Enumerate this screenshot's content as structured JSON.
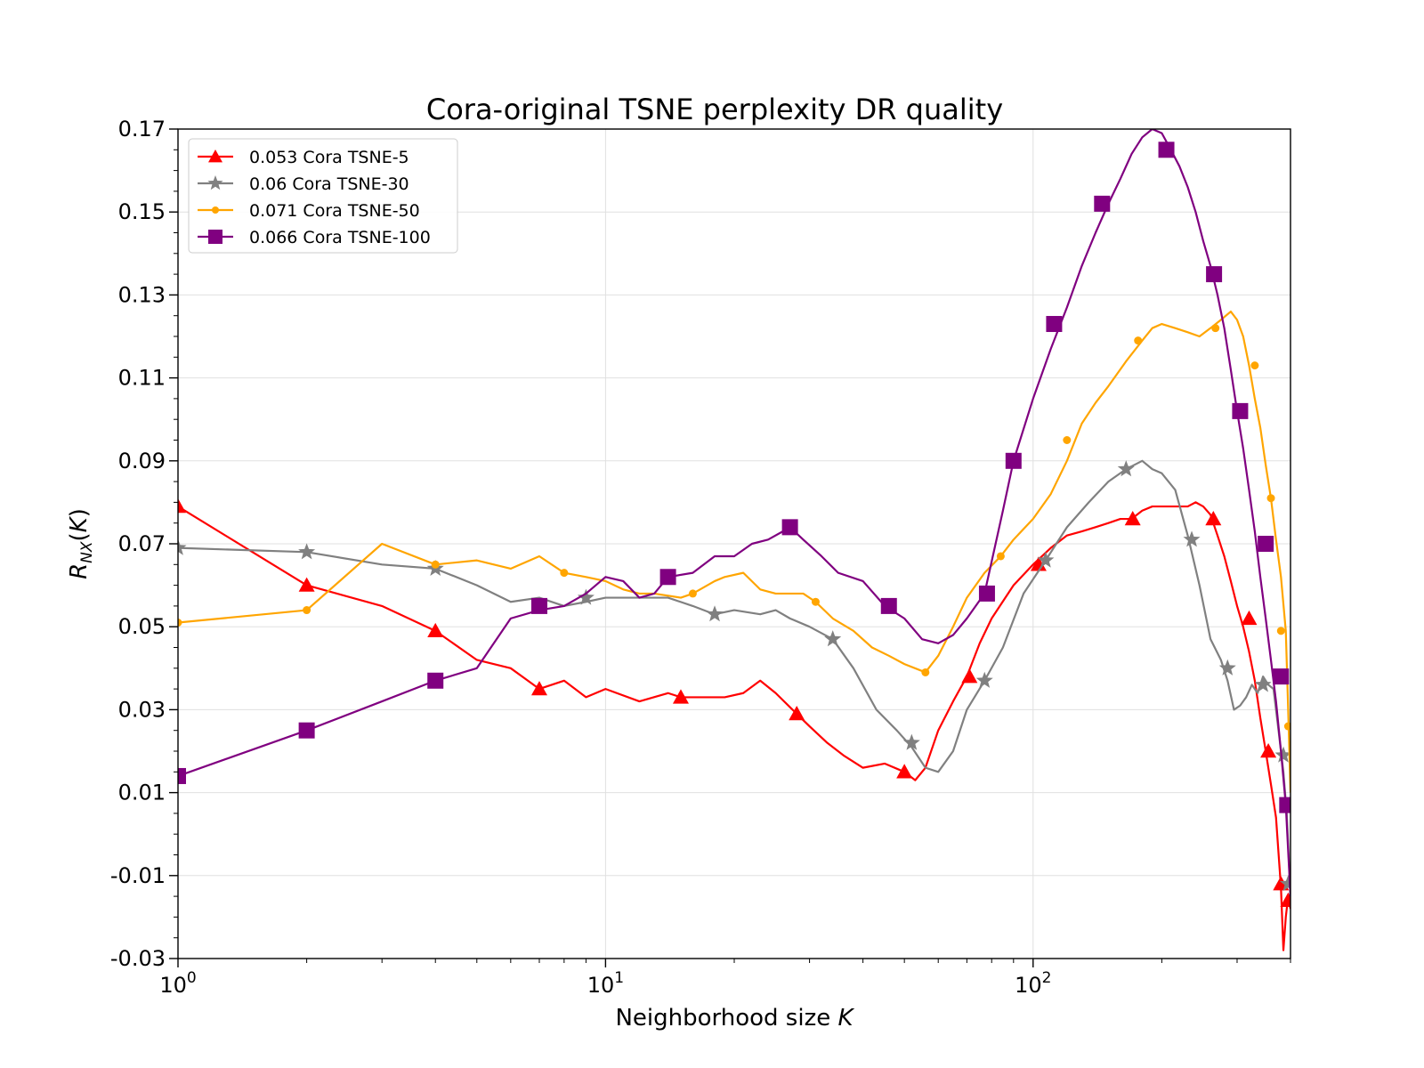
{
  "chart_data": {
    "type": "line",
    "title": "Cora-original TSNE perplexity DR quality",
    "xlabel": "Neighborhood size K",
    "ylabel": "R_NX(K)",
    "xscale": "log",
    "xlim": [
      1,
      400
    ],
    "ylim": [
      -0.03,
      0.17
    ],
    "x_ticks": [
      {
        "value": 1,
        "label_base": "10",
        "label_exp": "0"
      },
      {
        "value": 10,
        "label_base": "10",
        "label_exp": "1"
      },
      {
        "value": 100,
        "label_base": "10",
        "label_exp": "2"
      }
    ],
    "y_ticks": [
      {
        "value": 0.17,
        "label": "0.17"
      },
      {
        "value": 0.15,
        "label": "0.15"
      },
      {
        "value": 0.13,
        "label": "0.13"
      },
      {
        "value": 0.11,
        "label": "0.11"
      },
      {
        "value": 0.09,
        "label": "0.09"
      },
      {
        "value": 0.07,
        "label": "0.07"
      },
      {
        "value": 0.05,
        "label": "0.05"
      },
      {
        "value": 0.03,
        "label": "0.03"
      },
      {
        "value": 0.01,
        "label": "0.01"
      },
      {
        "value": -0.01,
        "label": "-0.01"
      },
      {
        "value": -0.03,
        "label": "-0.03"
      }
    ],
    "grid": true,
    "legend_position": "top-left",
    "series": [
      {
        "name": "0.053 Cora TSNE-5",
        "color": "#ff0000",
        "marker": "triangle",
        "x": [
          1,
          2,
          3,
          4,
          5,
          6,
          7,
          8,
          9,
          10,
          12,
          14,
          15,
          17,
          19,
          21,
          23,
          25,
          28,
          30,
          33,
          36,
          40,
          45,
          50,
          53,
          56,
          60,
          65,
          70,
          75,
          80,
          90,
          100,
          110,
          120,
          130,
          140,
          150,
          160,
          170,
          180,
          190,
          200,
          210,
          220,
          230,
          240,
          250,
          260,
          270,
          280,
          290,
          300,
          310,
          320,
          330,
          340,
          350,
          360,
          370,
          380,
          385,
          390,
          395,
          400
        ],
        "y": [
          0.079,
          0.06,
          0.055,
          0.049,
          0.042,
          0.04,
          0.035,
          0.037,
          0.033,
          0.035,
          0.032,
          0.034,
          0.033,
          0.033,
          0.033,
          0.034,
          0.037,
          0.034,
          0.029,
          0.026,
          0.022,
          0.019,
          0.016,
          0.017,
          0.015,
          0.013,
          0.016,
          0.025,
          0.032,
          0.038,
          0.046,
          0.052,
          0.06,
          0.065,
          0.069,
          0.072,
          0.073,
          0.074,
          0.075,
          0.076,
          0.076,
          0.078,
          0.079,
          0.079,
          0.079,
          0.079,
          0.079,
          0.08,
          0.079,
          0.077,
          0.072,
          0.067,
          0.061,
          0.055,
          0.05,
          0.044,
          0.037,
          0.028,
          0.02,
          0.012,
          0.004,
          -0.013,
          -0.028,
          -0.02,
          -0.015,
          -0.018
        ],
        "marker_x": [
          1,
          2,
          4,
          7,
          15,
          28,
          50,
          71,
          103,
          171,
          264,
          320,
          355,
          380,
          395
        ],
        "marker_y": [
          0.079,
          0.06,
          0.049,
          0.035,
          0.033,
          0.029,
          0.015,
          0.038,
          0.065,
          0.076,
          0.076,
          0.052,
          0.02,
          -0.012,
          -0.016
        ]
      },
      {
        "name": "0.06 Cora TSNE-30",
        "color": "#808080",
        "marker": "star",
        "x": [
          1,
          2,
          3,
          4,
          5,
          6,
          7,
          8,
          9,
          10,
          12,
          14,
          16,
          18,
          20,
          23,
          25,
          27,
          30,
          34,
          38,
          43,
          48,
          52,
          56,
          60,
          65,
          70,
          77,
          85,
          95,
          107,
          120,
          135,
          150,
          165,
          180,
          190,
          200,
          215,
          230,
          245,
          260,
          275,
          285,
          295,
          305,
          315,
          325,
          335,
          345,
          355,
          365,
          375,
          385,
          392,
          400
        ],
        "y": [
          0.069,
          0.068,
          0.065,
          0.064,
          0.06,
          0.056,
          0.057,
          0.055,
          0.056,
          0.057,
          0.057,
          0.057,
          0.055,
          0.053,
          0.054,
          0.053,
          0.054,
          0.052,
          0.05,
          0.047,
          0.04,
          0.03,
          0.025,
          0.021,
          0.016,
          0.015,
          0.02,
          0.03,
          0.037,
          0.045,
          0.058,
          0.066,
          0.074,
          0.08,
          0.085,
          0.088,
          0.09,
          0.088,
          0.087,
          0.083,
          0.072,
          0.06,
          0.047,
          0.042,
          0.037,
          0.03,
          0.031,
          0.033,
          0.036,
          0.034,
          0.038,
          0.036,
          0.035,
          0.025,
          0.015,
          0.005,
          -0.015
        ],
        "marker_x": [
          1,
          2,
          4,
          9,
          18,
          34,
          52,
          77,
          107,
          165,
          235,
          285,
          345,
          385,
          395
        ],
        "marker_y": [
          0.069,
          0.068,
          0.064,
          0.057,
          0.053,
          0.047,
          0.022,
          0.037,
          0.066,
          0.088,
          0.071,
          0.04,
          0.036,
          0.019,
          -0.012
        ]
      },
      {
        "name": "0.071 Cora TSNE-50",
        "color": "#ffa500",
        "marker": "dot",
        "x": [
          1,
          2,
          3,
          4,
          5,
          6,
          7,
          8,
          9,
          10,
          11,
          12,
          13,
          15,
          16,
          18,
          19,
          21,
          23,
          25,
          27,
          29,
          31,
          34,
          38,
          42,
          46,
          50,
          56,
          60,
          65,
          70,
          77,
          84,
          90,
          100,
          110,
          120,
          130,
          140,
          150,
          165,
          180,
          190,
          200,
          215,
          230,
          245,
          260,
          275,
          290,
          300,
          310,
          320,
          330,
          340,
          350,
          360,
          370,
          380,
          390,
          395,
          400
        ],
        "y": [
          0.051,
          0.054,
          0.07,
          0.065,
          0.066,
          0.064,
          0.067,
          0.063,
          0.062,
          0.061,
          0.059,
          0.058,
          0.058,
          0.057,
          0.058,
          0.061,
          0.062,
          0.063,
          0.059,
          0.058,
          0.058,
          0.058,
          0.056,
          0.052,
          0.049,
          0.045,
          0.043,
          0.041,
          0.039,
          0.043,
          0.05,
          0.057,
          0.063,
          0.067,
          0.071,
          0.076,
          0.082,
          0.09,
          0.099,
          0.104,
          0.108,
          0.114,
          0.119,
          0.122,
          0.123,
          0.122,
          0.121,
          0.12,
          0.122,
          0.124,
          0.126,
          0.124,
          0.12,
          0.113,
          0.105,
          0.098,
          0.089,
          0.081,
          0.071,
          0.062,
          0.049,
          0.03,
          0.01
        ],
        "marker_x": [
          1,
          2,
          4,
          8,
          16,
          31,
          56,
          84,
          120,
          176,
          267,
          330,
          360,
          380,
          395
        ],
        "marker_y": [
          0.051,
          0.054,
          0.065,
          0.063,
          0.058,
          0.056,
          0.039,
          0.067,
          0.095,
          0.119,
          0.122,
          0.113,
          0.081,
          0.049,
          0.026
        ]
      },
      {
        "name": "0.066 Cora TSNE-100",
        "color": "#800080",
        "marker": "square",
        "x": [
          1,
          2,
          3,
          4,
          5,
          6,
          7,
          8,
          9,
          10,
          11,
          12,
          13,
          14,
          16,
          18,
          20,
          22,
          24,
          26,
          27,
          29,
          32,
          35,
          40,
          45,
          50,
          55,
          60,
          65,
          70,
          77,
          85,
          90,
          100,
          110,
          120,
          130,
          140,
          150,
          160,
          170,
          180,
          190,
          200,
          210,
          220,
          230,
          240,
          250,
          260,
          270,
          280,
          290,
          300,
          310,
          320,
          330,
          340,
          350,
          360,
          370,
          380,
          390,
          400
        ],
        "y": [
          0.014,
          0.025,
          0.032,
          0.037,
          0.04,
          0.052,
          0.054,
          0.055,
          0.058,
          0.062,
          0.061,
          0.057,
          0.058,
          0.062,
          0.063,
          0.067,
          0.067,
          0.07,
          0.071,
          0.073,
          0.074,
          0.071,
          0.067,
          0.063,
          0.061,
          0.055,
          0.052,
          0.047,
          0.046,
          0.048,
          0.052,
          0.058,
          0.078,
          0.09,
          0.105,
          0.117,
          0.127,
          0.137,
          0.145,
          0.152,
          0.158,
          0.164,
          0.168,
          0.17,
          0.169,
          0.165,
          0.161,
          0.156,
          0.15,
          0.143,
          0.137,
          0.13,
          0.122,
          0.112,
          0.102,
          0.093,
          0.083,
          0.073,
          0.062,
          0.052,
          0.042,
          0.032,
          0.02,
          0.007,
          -0.015
        ],
        "marker_x": [
          1,
          2,
          4,
          7,
          14,
          27,
          46,
          78,
          90,
          112,
          145,
          205,
          265,
          305,
          350,
          380,
          393
        ],
        "marker_y": [
          0.014,
          0.025,
          0.037,
          0.055,
          0.062,
          0.074,
          0.055,
          0.058,
          0.09,
          0.123,
          0.152,
          0.165,
          0.135,
          0.102,
          0.07,
          0.038,
          0.007
        ]
      }
    ]
  }
}
